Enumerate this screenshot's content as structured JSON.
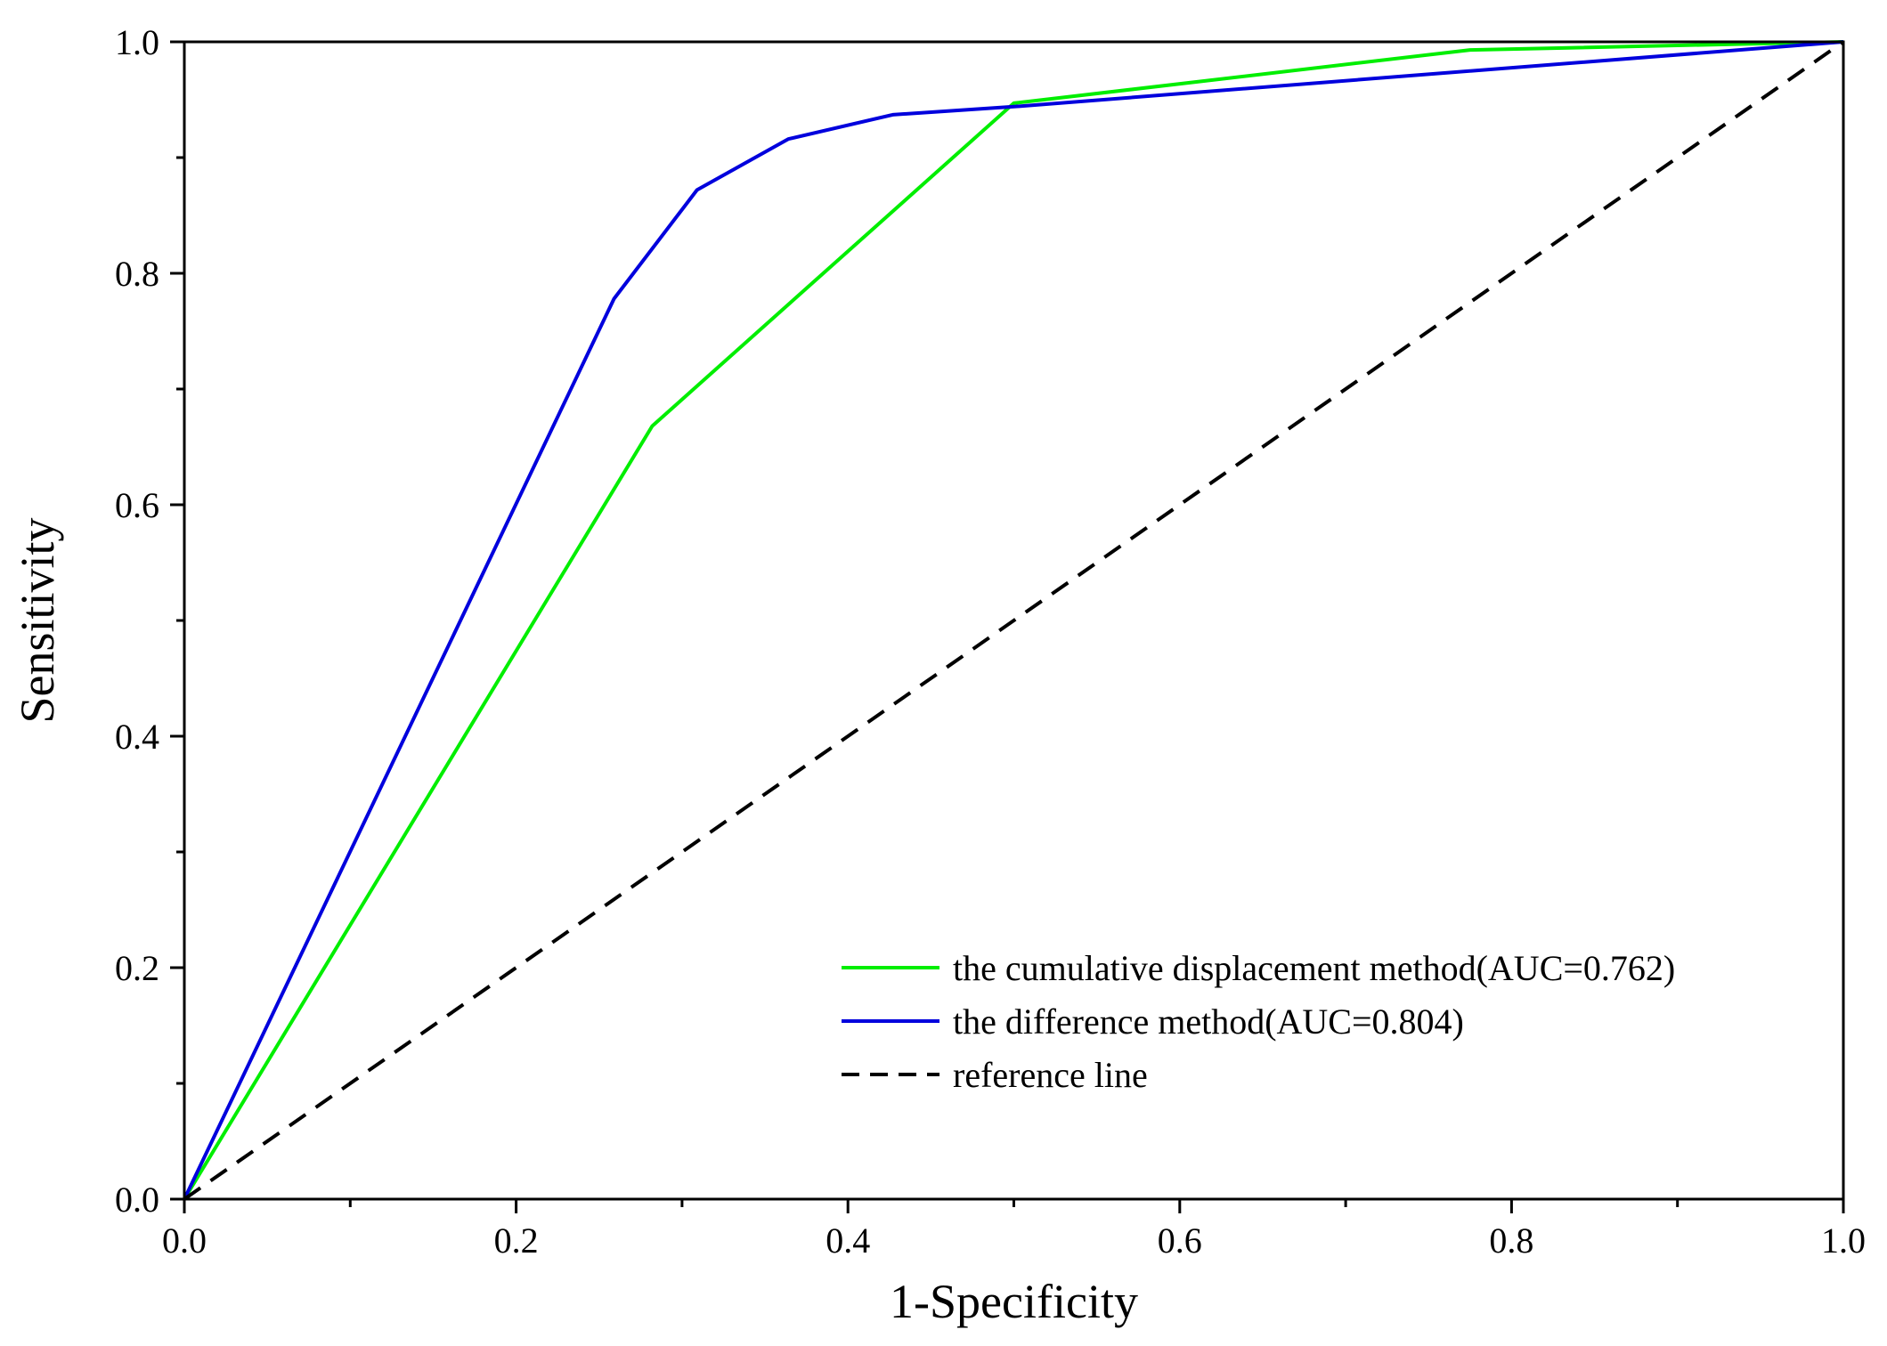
{
  "chart_data": {
    "type": "line",
    "title": "",
    "xlabel": "1-Specificity",
    "ylabel": "Sensitivity",
    "xlim": [
      0,
      1
    ],
    "ylim": [
      0,
      1
    ],
    "x_ticks": [
      "0.0",
      "0.2",
      "0.4",
      "0.6",
      "0.8",
      "1.0"
    ],
    "y_ticks": [
      "0.0",
      "0.2",
      "0.4",
      "0.6",
      "0.8",
      "1.0"
    ],
    "grid": false,
    "legend_position": "bottom-right",
    "series": [
      {
        "name": "the cumulative displacement method(AUC=0.762)",
        "color": "#00ee00",
        "style": "solid",
        "x": [
          0,
          0.282,
          0.5,
          0.775,
          1.0
        ],
        "y": [
          0,
          0.668,
          0.947,
          0.993,
          1.0
        ]
      },
      {
        "name": "the difference method(AUC=0.804)",
        "color": "#0000dd",
        "style": "solid",
        "x": [
          0,
          0.259,
          0.309,
          0.364,
          0.427,
          0.5,
          1.0
        ],
        "y": [
          0,
          0.778,
          0.872,
          0.916,
          0.937,
          0.944,
          1.0
        ]
      },
      {
        "name": "reference line",
        "color": "#000000",
        "style": "dashed",
        "x": [
          0,
          1
        ],
        "y": [
          0,
          1
        ]
      }
    ]
  }
}
